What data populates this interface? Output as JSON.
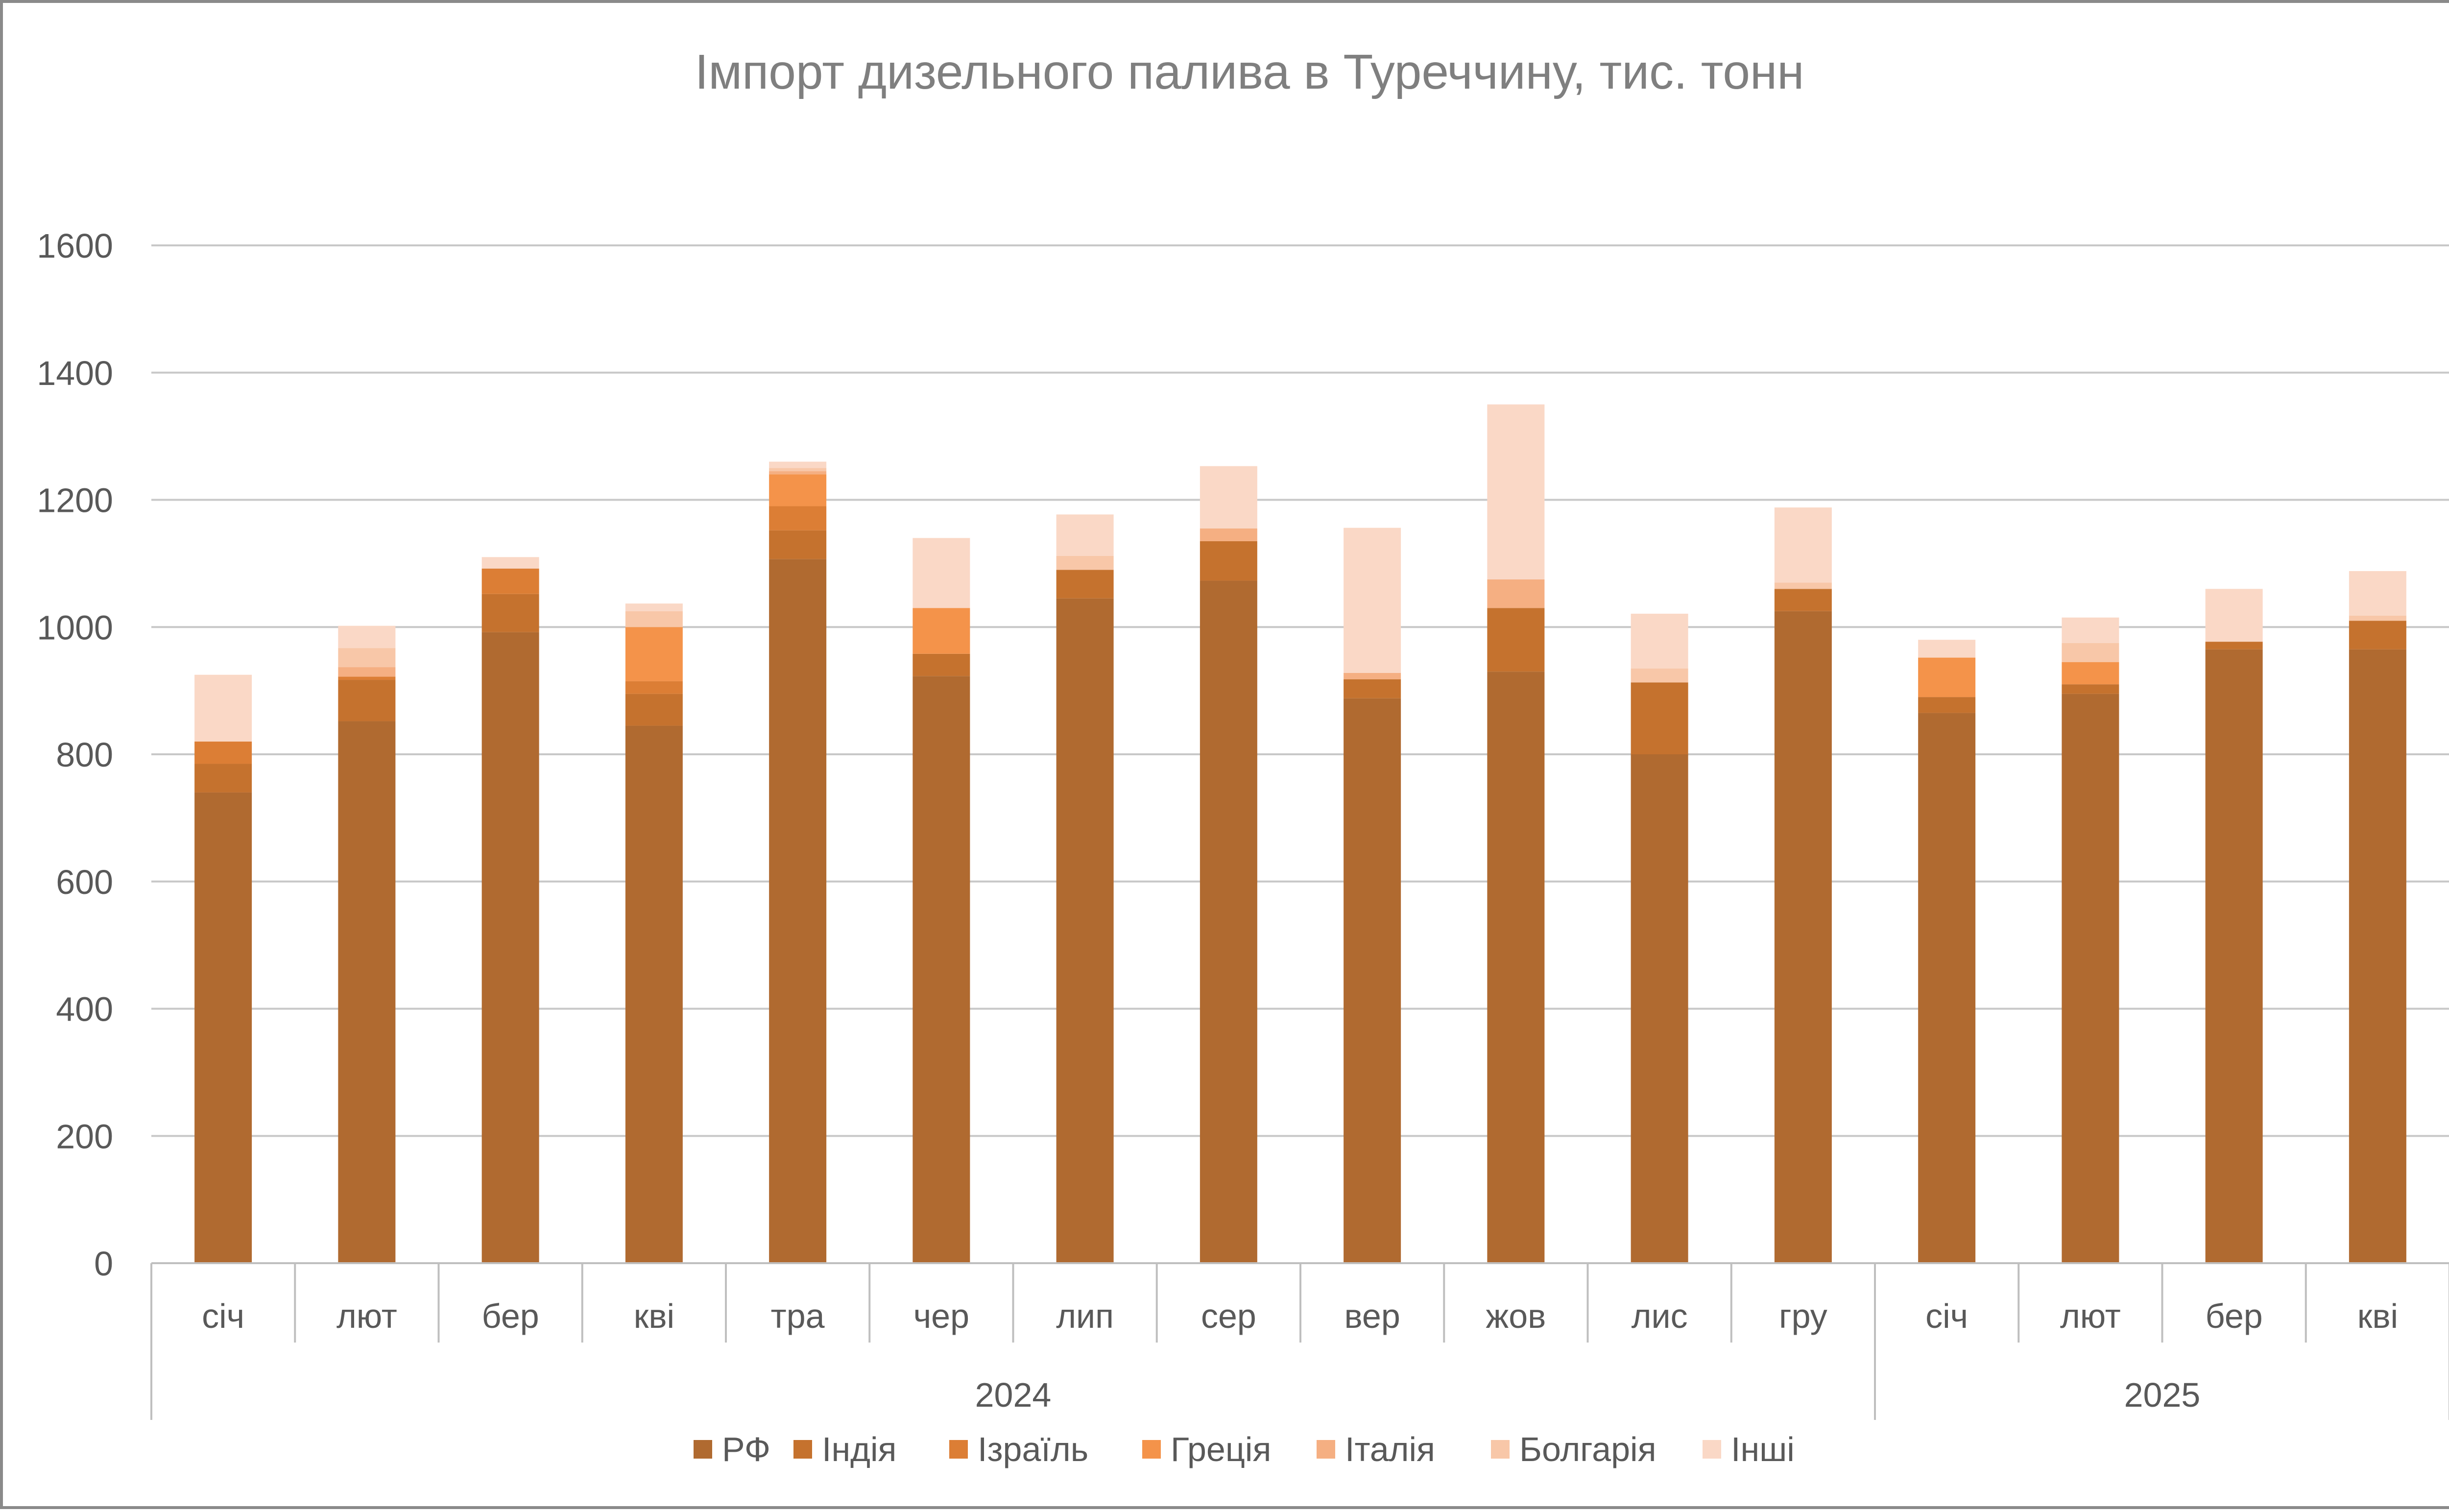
{
  "chart_data": {
    "type": "bar",
    "stacked": true,
    "title": "Імпорт дизельного палива в Туреччину, тис. тонн",
    "xlabel": "",
    "ylabel": "",
    "ylim": [
      0,
      1600
    ],
    "yticks": [
      0,
      200,
      400,
      600,
      800,
      1000,
      1200,
      1400,
      1600
    ],
    "grid": true,
    "legend_position": "bottom",
    "categories": [
      "січ",
      "лют",
      "бер",
      "кві",
      "тра",
      "чер",
      "лип",
      "сер",
      "вер",
      "жов",
      "лис",
      "гру",
      "січ",
      "лют",
      "бер",
      "кві"
    ],
    "groups": [
      {
        "label": "2024",
        "count": 12
      },
      {
        "label": "2025",
        "count": 4
      }
    ],
    "series": [
      {
        "name": "РФ",
        "color": "#B06A30",
        "values": [
          740,
          852,
          992,
          845,
          1107,
          923,
          1045,
          1073,
          888,
          930,
          800,
          1025,
          865,
          895,
          965,
          965
        ]
      },
      {
        "name": "Індія",
        "color": "#C5722E",
        "values": [
          45,
          65,
          60,
          50,
          45,
          35,
          45,
          62,
          30,
          100,
          113,
          35,
          25,
          15,
          12,
          45
        ]
      },
      {
        "name": "Ізраїль",
        "color": "#DC7E35",
        "values": [
          35,
          5,
          40,
          20,
          38,
          0,
          0,
          0,
          0,
          0,
          0,
          0,
          0,
          0,
          0,
          0
        ]
      },
      {
        "name": "Греція",
        "color": "#F4934A",
        "values": [
          0,
          0,
          0,
          85,
          50,
          72,
          0,
          0,
          0,
          0,
          0,
          0,
          62,
          35,
          0,
          0
        ]
      },
      {
        "name": "Італія",
        "color": "#F5AF82",
        "values": [
          0,
          15,
          0,
          0,
          5,
          0,
          0,
          20,
          10,
          45,
          0,
          0,
          0,
          0,
          0,
          0
        ]
      },
      {
        "name": "Болгарія",
        "color": "#F8C7A8",
        "values": [
          0,
          30,
          0,
          25,
          5,
          0,
          22,
          0,
          0,
          0,
          22,
          10,
          0,
          30,
          0,
          8
        ]
      },
      {
        "name": "Інші",
        "color": "#FAD8C6",
        "values": [
          105,
          35,
          18,
          12,
          10,
          110,
          65,
          98,
          228,
          275,
          86,
          118,
          28,
          40,
          83,
          70
        ]
      }
    ]
  }
}
